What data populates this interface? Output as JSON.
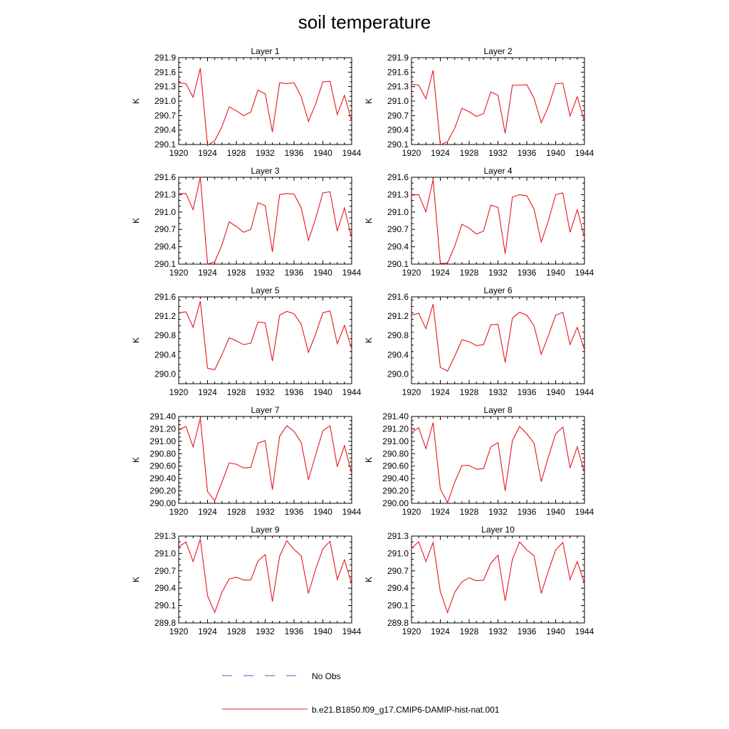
{
  "title": "soil temperature",
  "chart_data": [
    {
      "type": "line",
      "title": "Layer 1",
      "ylabel": "K",
      "ylim": [
        290.1,
        291.9
      ],
      "yticks": [
        290.1,
        290.4,
        290.7,
        291.0,
        291.3,
        291.6,
        291.9
      ],
      "ydecimals": 1,
      "xlim": [
        1920,
        1944
      ],
      "xticks": [
        1920,
        1924,
        1928,
        1932,
        1936,
        1940,
        1944
      ],
      "series": [
        {
          "x": [
            1920,
            1921,
            1922,
            1923,
            1924,
            1925,
            1926,
            1927,
            1928,
            1929,
            1930,
            1931,
            1932,
            1933,
            1934,
            1935,
            1936,
            1937,
            1938,
            1939,
            1940,
            1941,
            1942,
            1943,
            1944
          ],
          "values": [
            291.38,
            291.36,
            291.08,
            291.68,
            290.08,
            290.18,
            290.47,
            290.88,
            290.8,
            290.7,
            290.77,
            291.23,
            291.15,
            290.36,
            291.38,
            291.36,
            291.38,
            291.09,
            290.58,
            290.94,
            291.4,
            291.41,
            290.72,
            291.12,
            290.58
          ]
        }
      ]
    },
    {
      "type": "line",
      "title": "Layer 2",
      "ylabel": "K",
      "ylim": [
        290.1,
        291.9
      ],
      "yticks": [
        290.1,
        290.4,
        290.7,
        291.0,
        291.3,
        291.6,
        291.9
      ],
      "ydecimals": 1,
      "xlim": [
        1920,
        1944
      ],
      "xticks": [
        1920,
        1924,
        1928,
        1932,
        1936,
        1940,
        1944
      ],
      "series": [
        {
          "x": [
            1920,
            1921,
            1922,
            1923,
            1924,
            1925,
            1926,
            1927,
            1928,
            1929,
            1930,
            1931,
            1932,
            1933,
            1934,
            1935,
            1936,
            1937,
            1938,
            1939,
            1940,
            1941,
            1942,
            1943,
            1944
          ],
          "values": [
            291.35,
            291.33,
            291.05,
            291.64,
            290.09,
            290.16,
            290.44,
            290.85,
            290.78,
            290.68,
            290.74,
            291.19,
            291.12,
            290.33,
            291.33,
            291.33,
            291.34,
            291.06,
            290.55,
            290.89,
            291.36,
            291.37,
            290.69,
            291.09,
            290.57
          ]
        }
      ]
    },
    {
      "type": "line",
      "title": "Layer 3",
      "ylabel": "K",
      "ylim": [
        290.1,
        291.6
      ],
      "yticks": [
        290.1,
        290.4,
        290.7,
        291.0,
        291.3,
        291.6
      ],
      "ydecimals": 1,
      "xlim": [
        1920,
        1944
      ],
      "xticks": [
        1920,
        1924,
        1928,
        1932,
        1936,
        1940,
        1944
      ],
      "series": [
        {
          "x": [
            1920,
            1921,
            1922,
            1923,
            1924,
            1925,
            1926,
            1927,
            1928,
            1929,
            1930,
            1931,
            1932,
            1933,
            1934,
            1935,
            1936,
            1937,
            1938,
            1939,
            1940,
            1941,
            1942,
            1943,
            1944
          ],
          "values": [
            291.32,
            291.32,
            291.04,
            291.6,
            290.1,
            290.14,
            290.43,
            290.83,
            290.75,
            290.65,
            290.7,
            291.16,
            291.11,
            290.31,
            291.3,
            291.32,
            291.31,
            291.07,
            290.51,
            290.89,
            291.33,
            291.35,
            290.67,
            291.07,
            290.55
          ]
        }
      ]
    },
    {
      "type": "line",
      "title": "Layer 4",
      "ylabel": "K",
      "ylim": [
        290.1,
        291.6
      ],
      "yticks": [
        290.1,
        290.4,
        290.7,
        291.0,
        291.3,
        291.6
      ],
      "ydecimals": 1,
      "xlim": [
        1920,
        1944
      ],
      "xticks": [
        1920,
        1924,
        1928,
        1932,
        1936,
        1940,
        1944
      ],
      "series": [
        {
          "x": [
            1920,
            1921,
            1922,
            1923,
            1924,
            1925,
            1926,
            1927,
            1928,
            1929,
            1930,
            1931,
            1932,
            1933,
            1934,
            1935,
            1936,
            1937,
            1938,
            1939,
            1940,
            1941,
            1942,
            1943,
            1944
          ],
          "values": [
            291.29,
            291.3,
            291.0,
            291.56,
            290.11,
            290.12,
            290.41,
            290.79,
            290.72,
            290.62,
            290.67,
            291.12,
            291.08,
            290.28,
            291.26,
            291.3,
            291.28,
            291.05,
            290.48,
            290.85,
            291.3,
            291.33,
            290.65,
            291.04,
            290.56
          ]
        }
      ]
    },
    {
      "type": "line",
      "title": "Layer 5",
      "ylabel": "K",
      "ylim": [
        289.8,
        291.6
      ],
      "yticks": [
        290.0,
        290.4,
        290.8,
        291.2,
        291.6
      ],
      "ydecimals": 1,
      "xlim": [
        1920,
        1944
      ],
      "xticks": [
        1920,
        1924,
        1928,
        1932,
        1936,
        1940,
        1944
      ],
      "series": [
        {
          "x": [
            1920,
            1921,
            1922,
            1923,
            1924,
            1925,
            1926,
            1927,
            1928,
            1929,
            1930,
            1931,
            1932,
            1933,
            1934,
            1935,
            1936,
            1937,
            1938,
            1939,
            1940,
            1941,
            1942,
            1943,
            1944
          ],
          "values": [
            291.27,
            291.29,
            290.97,
            291.51,
            290.12,
            290.09,
            290.4,
            290.75,
            290.69,
            290.61,
            290.64,
            291.08,
            291.06,
            290.27,
            291.22,
            291.3,
            291.25,
            291.03,
            290.45,
            290.83,
            291.27,
            291.31,
            290.63,
            291.01,
            290.52
          ]
        }
      ]
    },
    {
      "type": "line",
      "title": "Layer 6",
      "ylabel": "K",
      "ylim": [
        289.8,
        291.6
      ],
      "yticks": [
        290.0,
        290.4,
        290.8,
        291.2,
        291.6
      ],
      "ydecimals": 1,
      "xlim": [
        1920,
        1944
      ],
      "xticks": [
        1920,
        1924,
        1928,
        1932,
        1936,
        1940,
        1944
      ],
      "series": [
        {
          "x": [
            1920,
            1921,
            1922,
            1923,
            1924,
            1925,
            1926,
            1927,
            1928,
            1929,
            1930,
            1931,
            1932,
            1933,
            1934,
            1935,
            1936,
            1937,
            1938,
            1939,
            1940,
            1941,
            1942,
            1943,
            1944
          ],
          "values": [
            291.22,
            291.26,
            290.94,
            291.45,
            290.14,
            290.06,
            290.37,
            290.71,
            290.67,
            290.59,
            290.61,
            291.02,
            291.03,
            290.24,
            291.16,
            291.28,
            291.22,
            291.0,
            290.41,
            290.8,
            291.22,
            291.28,
            290.61,
            290.97,
            290.5
          ]
        }
      ]
    },
    {
      "type": "line",
      "title": "Layer 7",
      "ylabel": "K",
      "ylim": [
        290.0,
        291.4
      ],
      "yticks": [
        290.0,
        290.2,
        290.4,
        290.6,
        290.8,
        291.0,
        291.2,
        291.4
      ],
      "ydecimals": 2,
      "xlim": [
        1920,
        1944
      ],
      "xticks": [
        1920,
        1924,
        1928,
        1932,
        1936,
        1940,
        1944
      ],
      "series": [
        {
          "x": [
            1920,
            1921,
            1922,
            1923,
            1924,
            1925,
            1926,
            1927,
            1928,
            1929,
            1930,
            1931,
            1932,
            1933,
            1934,
            1935,
            1936,
            1937,
            1938,
            1939,
            1940,
            1941,
            1942,
            1943,
            1944
          ],
          "values": [
            291.18,
            291.24,
            290.91,
            291.37,
            290.19,
            290.04,
            290.34,
            290.65,
            290.63,
            290.57,
            290.58,
            290.97,
            291.01,
            290.22,
            291.08,
            291.25,
            291.16,
            290.98,
            290.38,
            290.78,
            291.17,
            291.25,
            290.59,
            290.93,
            290.48
          ]
        }
      ]
    },
    {
      "type": "line",
      "title": "Layer 8",
      "ylabel": "K",
      "ylim": [
        290.0,
        291.4
      ],
      "yticks": [
        290.0,
        290.2,
        290.4,
        290.6,
        290.8,
        291.0,
        291.2,
        291.4
      ],
      "ydecimals": 2,
      "xlim": [
        1920,
        1944
      ],
      "xticks": [
        1920,
        1924,
        1928,
        1932,
        1936,
        1940,
        1944
      ],
      "series": [
        {
          "x": [
            1920,
            1921,
            1922,
            1923,
            1924,
            1925,
            1926,
            1927,
            1928,
            1929,
            1930,
            1931,
            1932,
            1933,
            1934,
            1935,
            1936,
            1937,
            1938,
            1939,
            1940,
            1941,
            1942,
            1943,
            1944
          ],
          "values": [
            291.14,
            291.22,
            290.88,
            291.3,
            290.23,
            290.01,
            290.34,
            290.61,
            290.61,
            290.55,
            290.56,
            290.91,
            290.98,
            290.2,
            291.01,
            291.24,
            291.12,
            290.97,
            290.35,
            290.75,
            291.12,
            291.23,
            290.57,
            290.91,
            290.49
          ]
        }
      ]
    },
    {
      "type": "line",
      "title": "Layer 9",
      "ylabel": "K",
      "ylim": [
        289.8,
        291.3
      ],
      "yticks": [
        289.8,
        290.1,
        290.4,
        290.7,
        291.0,
        291.3
      ],
      "ydecimals": 1,
      "xlim": [
        1920,
        1944
      ],
      "xticks": [
        1920,
        1924,
        1928,
        1932,
        1936,
        1940,
        1944
      ],
      "series": [
        {
          "x": [
            1920,
            1921,
            1922,
            1923,
            1924,
            1925,
            1926,
            1927,
            1928,
            1929,
            1930,
            1931,
            1932,
            1933,
            1934,
            1935,
            1936,
            1937,
            1938,
            1939,
            1940,
            1941,
            1942,
            1943,
            1944
          ],
          "values": [
            291.11,
            291.2,
            290.86,
            291.25,
            290.27,
            289.98,
            290.33,
            290.56,
            290.59,
            290.54,
            290.54,
            290.87,
            290.98,
            290.17,
            290.95,
            291.22,
            291.07,
            290.96,
            290.31,
            290.73,
            291.08,
            291.21,
            290.55,
            290.89,
            290.47
          ]
        }
      ]
    },
    {
      "type": "line",
      "title": "Layer 10",
      "ylabel": "K",
      "ylim": [
        289.8,
        291.3
      ],
      "yticks": [
        289.8,
        290.1,
        290.4,
        290.7,
        291.0,
        291.3
      ],
      "ydecimals": 1,
      "xlim": [
        1920,
        1944
      ],
      "xticks": [
        1920,
        1924,
        1928,
        1932,
        1936,
        1940,
        1944
      ],
      "series": [
        {
          "x": [
            1920,
            1921,
            1922,
            1923,
            1924,
            1925,
            1926,
            1927,
            1928,
            1929,
            1930,
            1931,
            1932,
            1933,
            1934,
            1935,
            1936,
            1937,
            1938,
            1939,
            1940,
            1941,
            1942,
            1943,
            1944
          ],
          "values": [
            291.09,
            291.2,
            290.86,
            291.19,
            290.34,
            289.98,
            290.33,
            290.51,
            290.58,
            290.53,
            290.54,
            290.83,
            290.97,
            290.18,
            290.9,
            291.2,
            291.06,
            290.96,
            290.31,
            290.7,
            291.06,
            291.19,
            290.55,
            290.86,
            290.48
          ]
        }
      ]
    }
  ],
  "legend": [
    {
      "label": "No Obs",
      "color": "#4a5fc1",
      "dash": "dashed"
    },
    {
      "label": "b.e21.B1850.f09_g17.CMIP6-DAMIP-hist-nat.001",
      "color": "#e8161b",
      "dash": "solid"
    }
  ]
}
